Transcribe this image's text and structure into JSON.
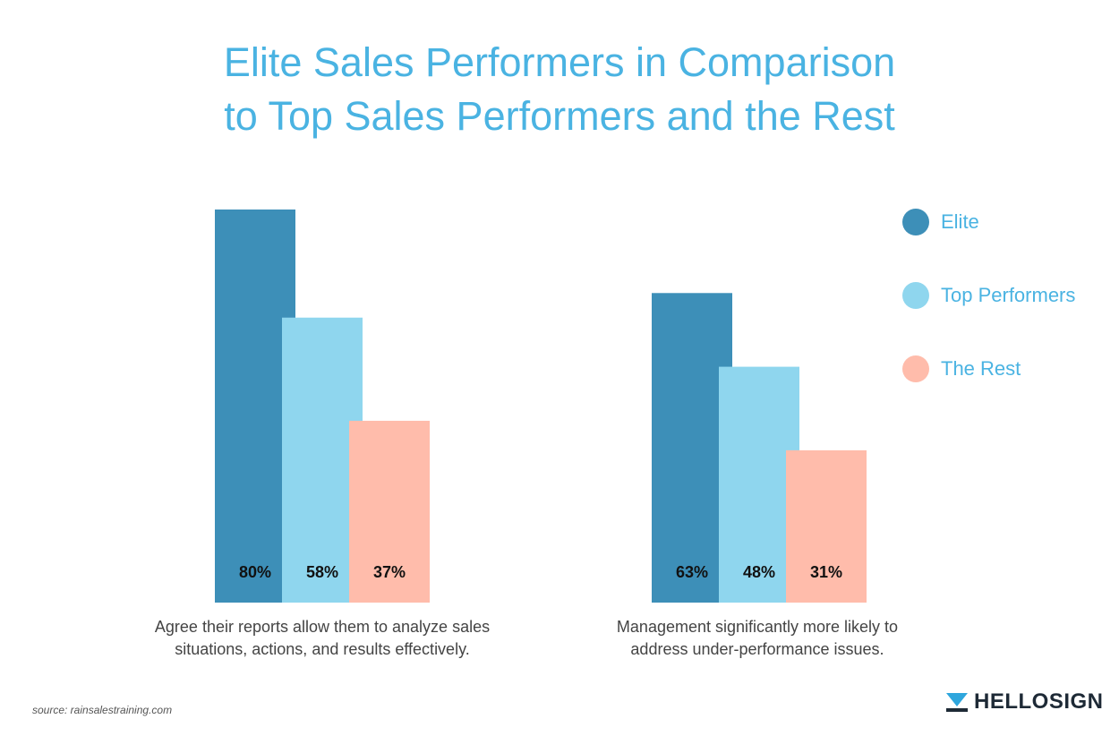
{
  "title": {
    "line1": "Elite Sales Performers in Comparison",
    "line2": "to Top Sales Performers and the Rest"
  },
  "colors": {
    "elite": "#3d8fb8",
    "top": "#8fd6ee",
    "rest": "#ffbcab",
    "title": "#4ab3e2"
  },
  "chart_data": {
    "type": "bar",
    "title": "Elite Sales Performers in Comparison to Top Sales Performers and the Rest",
    "categories": [
      "Agree their reports allow them to analyze sales situations, actions, and results effectively.",
      "Management significantly more likely to address under-performance issues."
    ],
    "series": [
      {
        "name": "Elite",
        "values": [
          80,
          63
        ],
        "labels": [
          "80%",
          "63%"
        ]
      },
      {
        "name": "Top Performers",
        "values": [
          58,
          48
        ],
        "labels": [
          "58%",
          "48%"
        ]
      },
      {
        "name": "The Rest",
        "values": [
          37,
          31
        ],
        "labels": [
          "37%",
          "31%"
        ]
      }
    ],
    "xlabel": "",
    "ylabel": "",
    "ylim": [
      0,
      80
    ],
    "grid": false,
    "legend": "right"
  },
  "captions": [
    {
      "line1": "Agree their reports allow them to analyze sales",
      "line2": "situations, actions, and results effectively."
    },
    {
      "line1": "Management significantly more likely to",
      "line2": "address under-performance issues."
    }
  ],
  "legend": {
    "items": [
      "Elite",
      "Top Performers",
      "The Rest"
    ]
  },
  "source": "source: rainsalestraining.com",
  "brand": {
    "name": "HELLOSIGN",
    "icon": "hellosign-logo-icon"
  }
}
